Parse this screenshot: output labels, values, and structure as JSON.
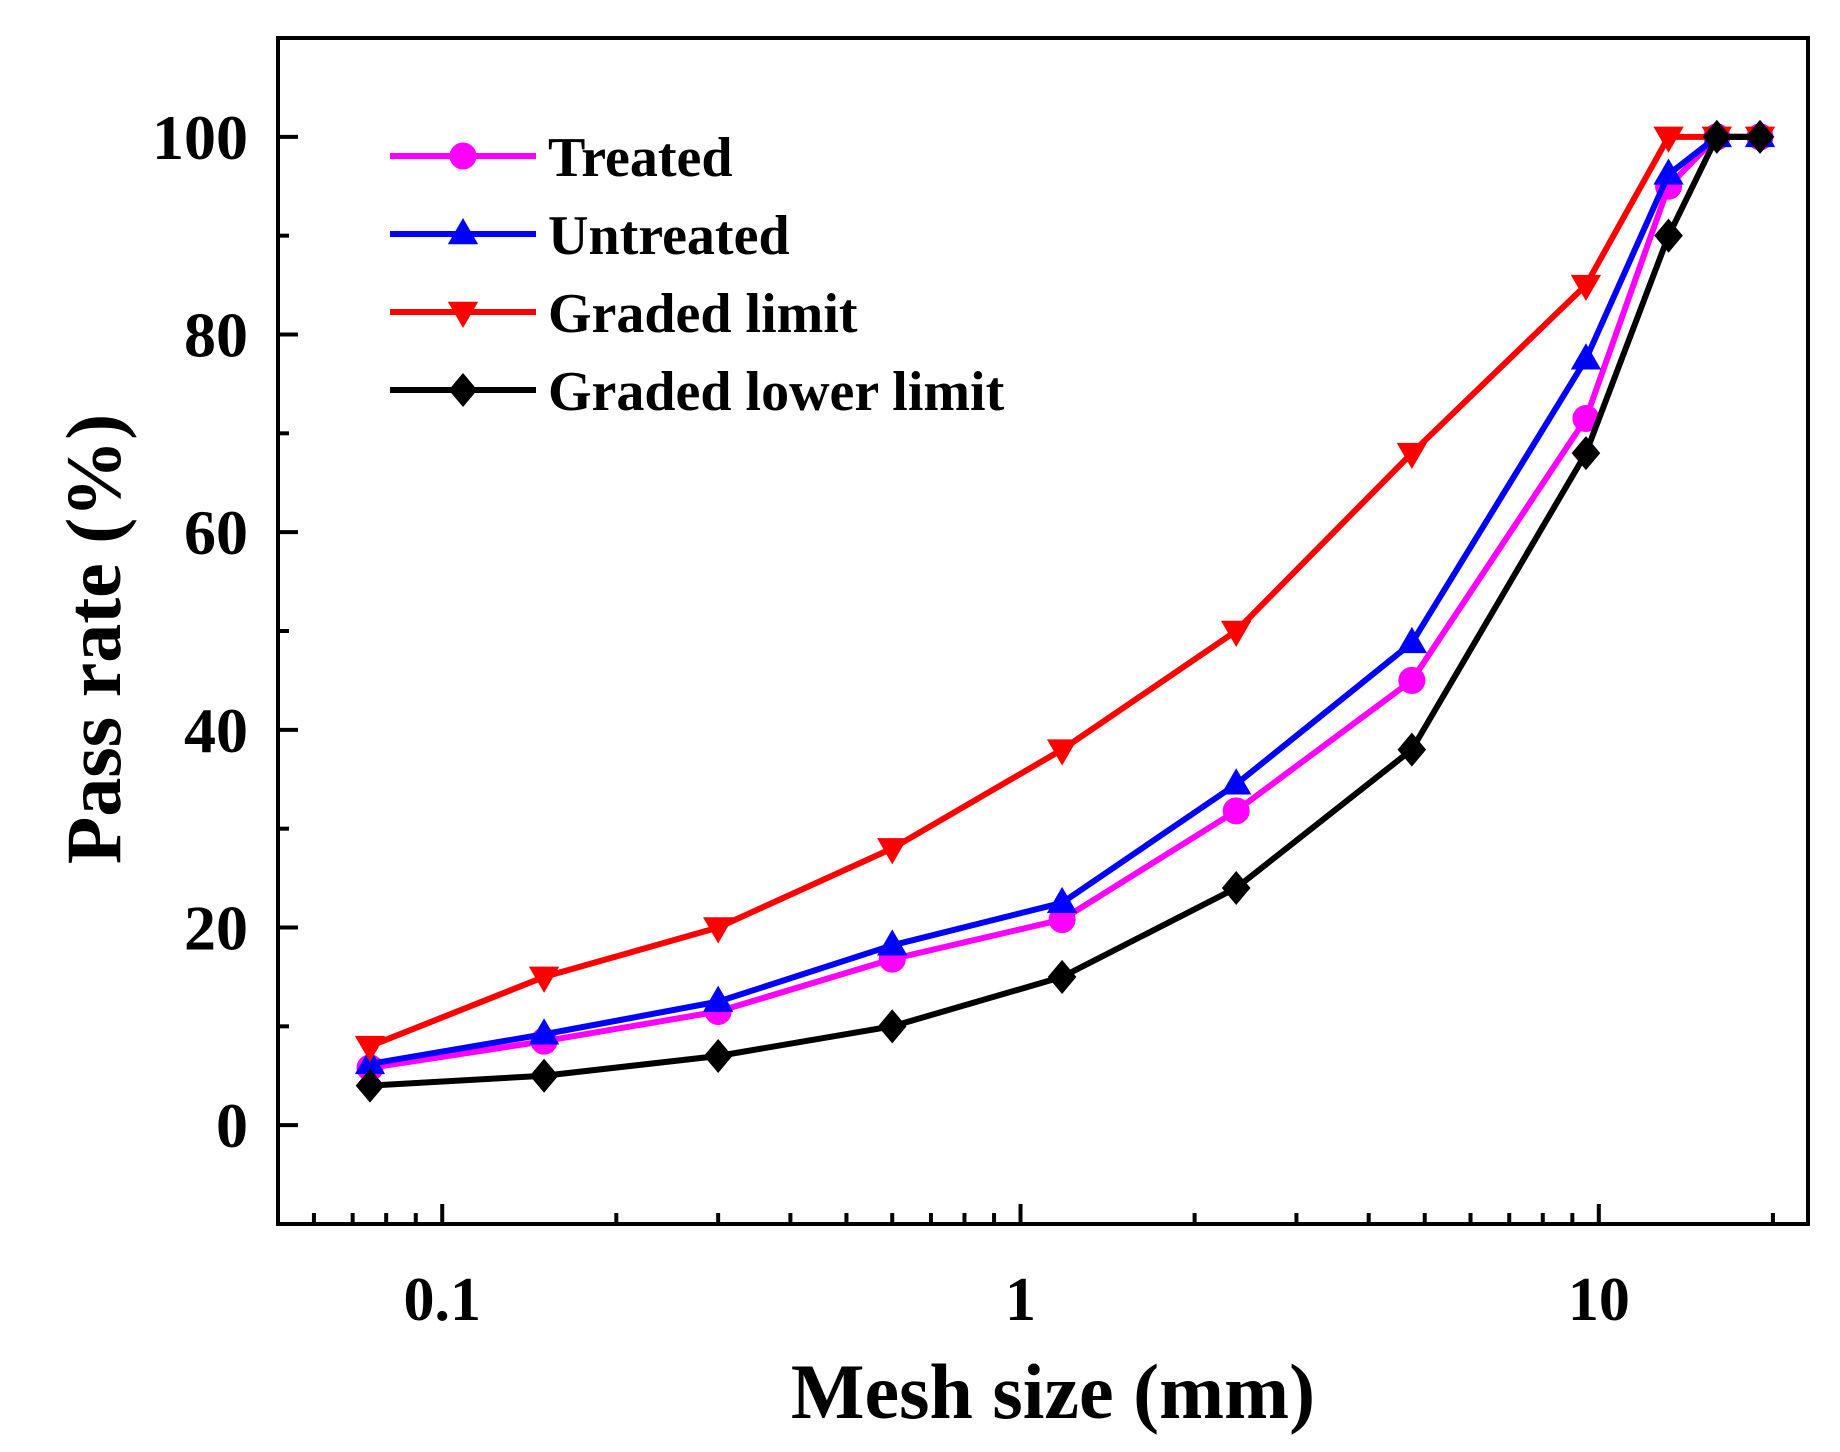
{
  "chart_data": {
    "type": "line",
    "title": "",
    "xlabel": "Mesh size (mm)",
    "ylabel": "Pass rate (%)",
    "xscale": "log",
    "xlim": [
      0.052,
      23
    ],
    "ylim": [
      -10,
      110
    ],
    "grid": false,
    "legend_position": "top-left",
    "x_ticks": [
      {
        "value": 0.1,
        "label": "0.1"
      },
      {
        "value": 1,
        "label": "1"
      },
      {
        "value": 10,
        "label": "10"
      }
    ],
    "y_ticks": [
      {
        "value": 0,
        "label": "0"
      },
      {
        "value": 20,
        "label": "20"
      },
      {
        "value": 40,
        "label": "40"
      },
      {
        "value": 60,
        "label": "60"
      },
      {
        "value": 80,
        "label": "80"
      },
      {
        "value": 100,
        "label": "100"
      }
    ],
    "x": [
      0.075,
      0.15,
      0.3,
      0.6,
      1.18,
      2.36,
      4.75,
      9.5,
      13.2,
      16,
      19
    ],
    "series": [
      {
        "name": "Treated",
        "color": "#ff00ff",
        "marker": "circle",
        "values": [
          5.8,
          8.5,
          11.5,
          16.8,
          20.8,
          31.8,
          45,
          71.5,
          95,
          100,
          100
        ]
      },
      {
        "name": "Untreated",
        "color": "#0000ff",
        "marker": "triangle-up",
        "values": [
          6.2,
          9.2,
          12.5,
          18.2,
          22.5,
          34.5,
          48.8,
          77.5,
          96.2,
          100,
          100
        ]
      },
      {
        "name": "Graded limit",
        "color": "#ff0000",
        "marker": "triangle-down",
        "values": [
          8,
          15,
          20,
          28,
          38,
          50,
          68,
          85,
          100,
          100,
          100
        ]
      },
      {
        "name": "Graded lower limit",
        "color": "#000000",
        "marker": "diamond",
        "values": [
          4,
          5,
          7,
          10,
          15,
          24,
          38,
          68,
          90,
          100,
          100
        ]
      }
    ]
  }
}
